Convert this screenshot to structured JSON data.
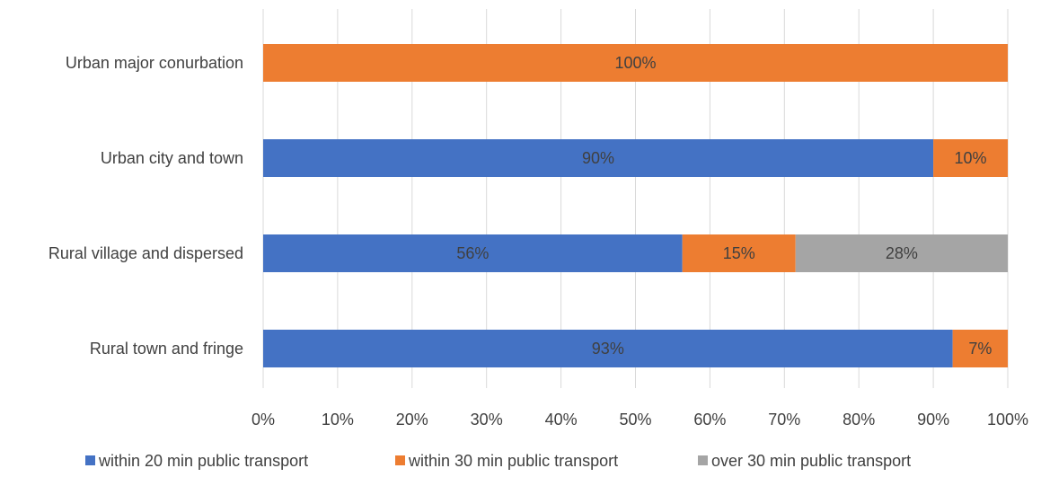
{
  "chart_data": {
    "type": "bar",
    "orientation": "horizontal",
    "stacked": true,
    "categories": [
      "Urban major conurbation",
      "Urban city and town",
      "Rural village and dispersed",
      "Rural town and fringe"
    ],
    "series": [
      {
        "name": "within 20 min public transport",
        "color": "#4472C4",
        "values": [
          0,
          90,
          56.3,
          92.6
        ],
        "labels": [
          "",
          "90%",
          "56%",
          "93%"
        ]
      },
      {
        "name": "within 30 min public transport",
        "color": "#ED7D31",
        "values": [
          100,
          10,
          15.2,
          7.4
        ],
        "labels": [
          "100%",
          "10%",
          "15%",
          "7%"
        ]
      },
      {
        "name": "over 30 min public transport",
        "color": "#A5A5A5",
        "values": [
          0,
          0,
          28.5,
          0
        ],
        "labels": [
          "",
          "",
          "28%",
          ""
        ]
      }
    ],
    "xlim": [
      0,
      100
    ],
    "xticks": [
      "0%",
      "10%",
      "20%",
      "30%",
      "40%",
      "50%",
      "60%",
      "70%",
      "80%",
      "90%",
      "100%"
    ],
    "grid": "vertical",
    "legend": "bottom",
    "title": "",
    "xlabel": "",
    "ylabel": ""
  }
}
